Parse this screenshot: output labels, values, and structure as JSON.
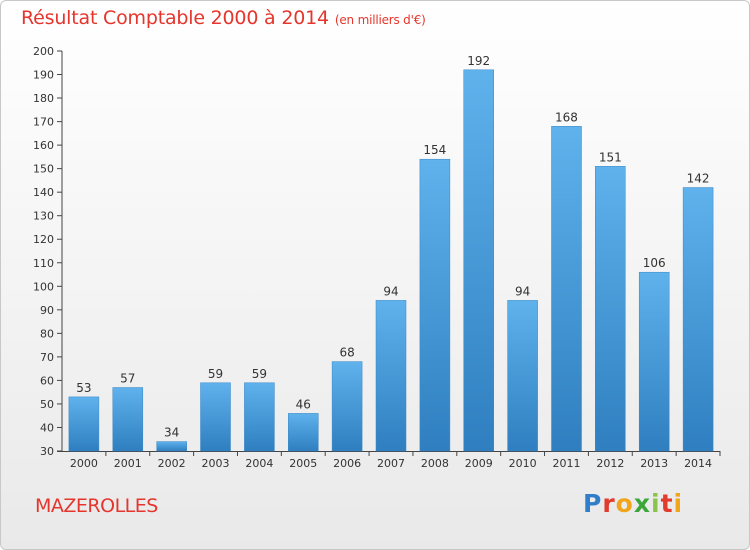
{
  "header": {
    "title": "Résultat Comptable 2000 à 2014",
    "subtitle": "(en milliers d'€)"
  },
  "footer": {
    "city": "MAZEROLLES",
    "logo": "Proxiti"
  },
  "colors": {
    "title": "#e5352c",
    "bar_top": "#5fb2ec",
    "bar_bottom": "#2f7fc0"
  },
  "chart_data": {
    "type": "bar",
    "title": "Résultat Comptable 2000 à 2014",
    "unit": "(en milliers d'€)",
    "xlabel": "",
    "ylabel": "",
    "categories": [
      "2000",
      "2001",
      "2002",
      "2003",
      "2004",
      "2005",
      "2006",
      "2007",
      "2008",
      "2009",
      "2010",
      "2011",
      "2012",
      "2013",
      "2014"
    ],
    "values": [
      53,
      57,
      34,
      59,
      59,
      46,
      68,
      94,
      154,
      192,
      94,
      168,
      151,
      106,
      142
    ],
    "ylim": [
      30,
      200
    ],
    "yticks": [
      30,
      40,
      50,
      60,
      70,
      80,
      90,
      100,
      110,
      120,
      130,
      140,
      150,
      160,
      170,
      180,
      190,
      200
    ],
    "grid": false,
    "legend": "none"
  }
}
